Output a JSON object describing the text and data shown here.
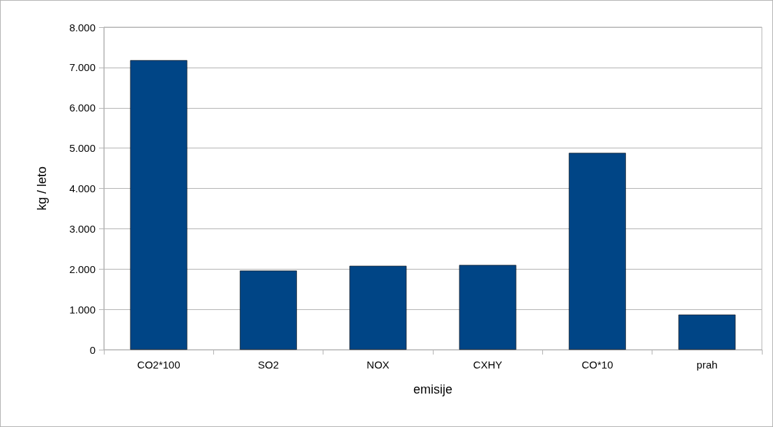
{
  "chart_data": {
    "type": "bar",
    "xlabel": "emisije",
    "ylabel": "kg / leto",
    "categories": [
      "CO2*100",
      "SO2",
      "NOX",
      "CXHY",
      "CO*10",
      "prah"
    ],
    "values": [
      7180,
      1960,
      2080,
      2100,
      4880,
      870
    ],
    "color": "#004586",
    "ylim": [
      0,
      8000
    ],
    "yticks": [
      0,
      {
        "value": 1000,
        "label": "1.000"
      },
      {
        "value": 2000,
        "label": "2.000"
      },
      {
        "value": 3000,
        "label": "3.000"
      },
      {
        "value": 4000,
        "label": "4.000"
      },
      {
        "value": 5000,
        "label": "5.000"
      },
      {
        "value": 6000,
        "label": "6.000"
      },
      {
        "value": 7000,
        "label": "7.000"
      },
      {
        "value": 8000,
        "label": "8.000"
      }
    ],
    "grid": "y"
  }
}
